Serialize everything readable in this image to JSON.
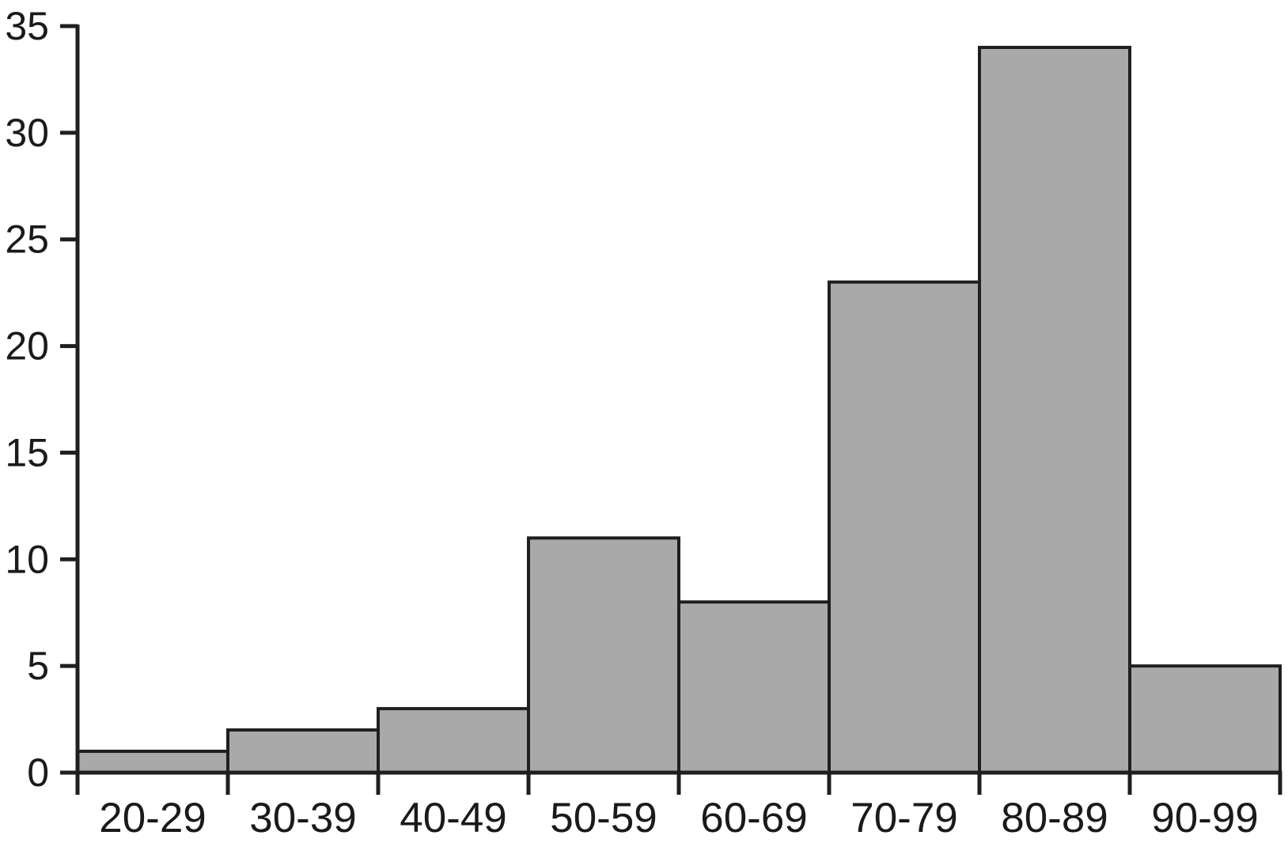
{
  "chart_data": {
    "type": "bar",
    "chart_kind": "histogram",
    "title": "",
    "xlabel": "",
    "ylabel": "",
    "categories": [
      "20-29",
      "30-39",
      "40-49",
      "50-59",
      "60-69",
      "70-79",
      "80-89",
      "90-99"
    ],
    "values": [
      1,
      2,
      3,
      11,
      8,
      23,
      34,
      5
    ],
    "ylim": [
      0,
      35
    ],
    "yticks": [
      0,
      5,
      10,
      15,
      20,
      25,
      30,
      35
    ],
    "grid": false,
    "legend": "none",
    "bars_touching": true,
    "colors": {
      "bar_fill": "#a9a9a9",
      "bar_stroke": "#1f1f1f",
      "axis": "#1f1f1f",
      "text": "#1a1a1a",
      "background": "#ffffff"
    }
  }
}
